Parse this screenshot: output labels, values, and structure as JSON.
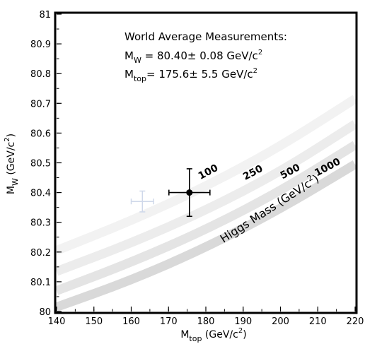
{
  "chart_data": {
    "type": "scatter",
    "title": "",
    "xlabel": {
      "main": "M",
      "sub": "top",
      "unit": " (GeV/c",
      "sup": "2",
      "close": ")"
    },
    "ylabel": {
      "main": "M",
      "sub": "W",
      "unit": " (GeV/c",
      "sup": "2",
      "close": ")"
    },
    "xlim": [
      140,
      220
    ],
    "ylim": [
      80,
      81
    ],
    "xticks": [
      "140",
      "150",
      "160",
      "170",
      "180",
      "190",
      "200",
      "210",
      "220"
    ],
    "yticks": [
      "80",
      "80.1",
      "80.2",
      "80.3",
      "80.4",
      "80.5",
      "80.6",
      "80.7",
      "80.8",
      "80.9",
      "81"
    ],
    "grid": false,
    "annotation": {
      "heading": "World Average Measurements:",
      "mw_main": "M",
      "mw_sub": "W",
      "mw_value": " = 80.40± 0.08 GeV/c",
      "mw_sup": "2",
      "mtop_main": "M",
      "mtop_sub": "top",
      "mtop_value": "= 175.6±  5.5 GeV/c",
      "mtop_sup": "2"
    },
    "measurement": {
      "x": 175.6,
      "y": 80.4,
      "xerr": 5.5,
      "yerr": 0.08
    },
    "faint_point": {
      "x": 163.0,
      "y": 80.37,
      "xerr": 3.0,
      "yerr": 0.035,
      "color": "#cfd8ea"
    },
    "band_label": {
      "text": "Higgs Mass (GeV/c",
      "sup": "2",
      "close": ")"
    },
    "series": [
      {
        "name": "100",
        "color": "#f2f2f2",
        "x": [
          140,
          160,
          180,
          200,
          220
        ],
        "y": [
          80.205,
          80.305,
          80.42,
          80.555,
          80.715
        ]
      },
      {
        "name": "250",
        "color": "#ececec",
        "x": [
          140,
          160,
          180,
          200,
          220
        ],
        "y": [
          80.135,
          80.23,
          80.34,
          80.47,
          80.63
        ]
      },
      {
        "name": "500",
        "color": "#e4e4e4",
        "x": [
          140,
          160,
          180,
          200,
          220
        ],
        "y": [
          80.07,
          80.165,
          80.275,
          80.405,
          80.56
        ]
      },
      {
        "name": "1000",
        "color": "#d9d9d9",
        "x": [
          140,
          160,
          180,
          200,
          220
        ],
        "y": [
          80.015,
          80.105,
          80.215,
          80.345,
          80.495
        ]
      }
    ]
  }
}
